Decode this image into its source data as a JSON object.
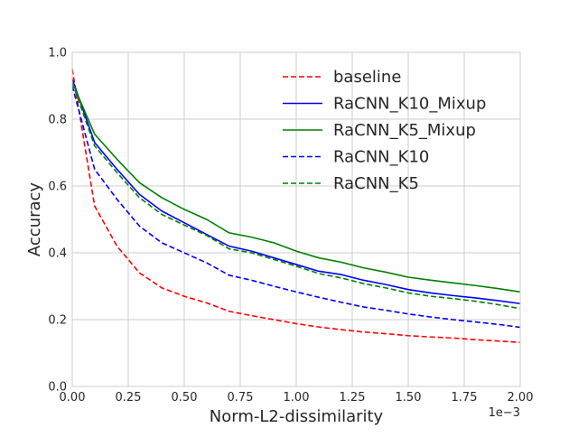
{
  "chart_data": {
    "type": "line",
    "title": "",
    "xlabel": "Norm-L2-dissimilarity",
    "ylabel": "Accuracy",
    "x_offset_label": "1e−3",
    "xlim": [
      0,
      2.0
    ],
    "ylim": [
      0,
      1.0
    ],
    "xticks": [
      0,
      0.25,
      0.5,
      0.75,
      1.0,
      1.25,
      1.5,
      1.75,
      2.0
    ],
    "xtick_labels": [
      "0.00",
      "0.25",
      "0.50",
      "0.75",
      "1.00",
      "1.25",
      "1.50",
      "1.75",
      "2.00"
    ],
    "yticks": [
      0,
      0.2,
      0.4,
      0.6,
      0.8,
      1.0
    ],
    "ytick_labels": [
      "0.0",
      "0.2",
      "0.4",
      "0.6",
      "0.8",
      "1.0"
    ],
    "grid": true,
    "legend_position": "top-right",
    "x": [
      0,
      0.1,
      0.2,
      0.3,
      0.4,
      0.5,
      0.6,
      0.7,
      0.8,
      0.9,
      1.0,
      1.1,
      1.2,
      1.3,
      1.4,
      1.5,
      1.6,
      1.7,
      1.8,
      1.9,
      2.0
    ],
    "series": [
      {
        "name": "baseline",
        "color": "#ff0000",
        "dash": "dashed",
        "values": [
          0.95,
          0.54,
          0.42,
          0.34,
          0.295,
          0.27,
          0.25,
          0.225,
          0.212,
          0.2,
          0.188,
          0.178,
          0.17,
          0.163,
          0.158,
          0.152,
          0.148,
          0.145,
          0.14,
          0.136,
          0.132
        ]
      },
      {
        "name": "RaCNN_K10_Mixup",
        "color": "#0000ff",
        "dash": "solid",
        "values": [
          0.92,
          0.73,
          0.65,
          0.575,
          0.525,
          0.49,
          0.455,
          0.42,
          0.405,
          0.385,
          0.365,
          0.345,
          0.335,
          0.318,
          0.305,
          0.29,
          0.28,
          0.272,
          0.265,
          0.257,
          0.248
        ]
      },
      {
        "name": "RaCNN_K5_Mixup",
        "color": "#008000",
        "dash": "solid",
        "values": [
          0.91,
          0.755,
          0.68,
          0.61,
          0.565,
          0.53,
          0.5,
          0.46,
          0.447,
          0.43,
          0.405,
          0.385,
          0.372,
          0.355,
          0.342,
          0.327,
          0.318,
          0.31,
          0.302,
          0.293,
          0.283
        ]
      },
      {
        "name": "RaCNN_K10",
        "color": "#0000ff",
        "dash": "dashed",
        "values": [
          0.9,
          0.65,
          0.56,
          0.48,
          0.43,
          0.4,
          0.37,
          0.333,
          0.318,
          0.3,
          0.283,
          0.267,
          0.252,
          0.238,
          0.228,
          0.217,
          0.208,
          0.2,
          0.193,
          0.186,
          0.177
        ]
      },
      {
        "name": "RaCNN_K5",
        "color": "#008000",
        "dash": "dashed",
        "values": [
          0.91,
          0.72,
          0.64,
          0.565,
          0.515,
          0.483,
          0.452,
          0.412,
          0.4,
          0.38,
          0.36,
          0.338,
          0.325,
          0.308,
          0.295,
          0.28,
          0.27,
          0.263,
          0.255,
          0.245,
          0.233
        ]
      }
    ]
  }
}
